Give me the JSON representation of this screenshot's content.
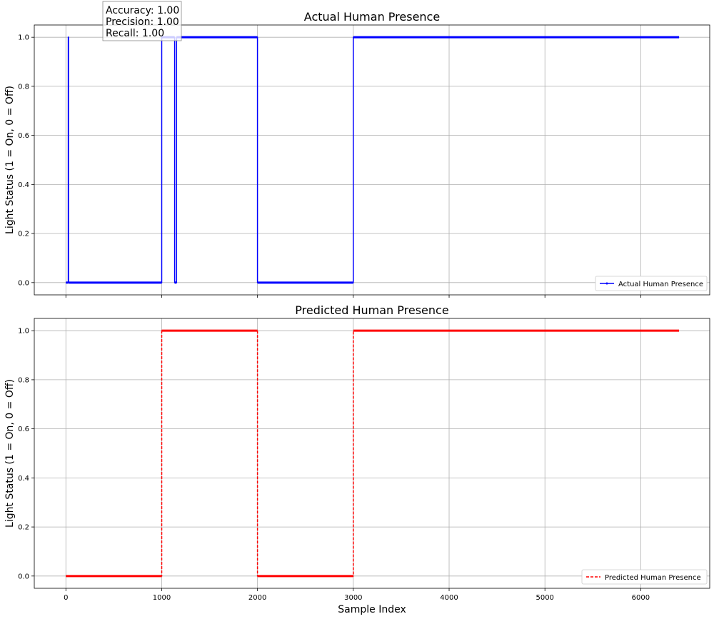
{
  "chart_data": [
    {
      "type": "line",
      "title": "Actual Human Presence",
      "xlabel": "",
      "ylabel": "Light Status (1 = On, 0 = Off)",
      "xlim": [
        -330,
        6720
      ],
      "ylim": [
        -0.05,
        1.05
      ],
      "xticks": [
        0,
        1000,
        2000,
        3000,
        4000,
        5000,
        6000
      ],
      "xtick_labels_shown": false,
      "yticks": [
        0.0,
        0.2,
        0.4,
        0.6,
        0.8,
        1.0
      ],
      "ytick_labels": [
        "0.0",
        "0.2",
        "0.4",
        "0.6",
        "0.8",
        "1.0"
      ],
      "grid": true,
      "legend": "lower right",
      "series": [
        {
          "name": "Actual Human Presence",
          "color": "#0000ff",
          "style": "solid",
          "marker": "point",
          "x": [
            0,
            25,
            25,
            28,
            28,
            1000,
            1000,
            1135,
            1135,
            1155,
            1155,
            2000,
            2000,
            3000,
            3000,
            6400
          ],
          "y": [
            0,
            0,
            1,
            1,
            0,
            0,
            1,
            1,
            0,
            0,
            1,
            1,
            0,
            0,
            1,
            1
          ]
        }
      ],
      "annotations": [
        "Accuracy: 1.00",
        "Precision: 1.00",
        "Recall: 1.00"
      ]
    },
    {
      "type": "line",
      "title": "Predicted Human Presence",
      "xlabel": "Sample Index",
      "ylabel": "Light Status (1 = On, 0 = Off)",
      "xlim": [
        -330,
        6720
      ],
      "ylim": [
        -0.05,
        1.05
      ],
      "xticks": [
        0,
        1000,
        2000,
        3000,
        4000,
        5000,
        6000
      ],
      "xtick_labels": [
        "0",
        "1000",
        "2000",
        "3000",
        "4000",
        "5000",
        "6000"
      ],
      "yticks": [
        0.0,
        0.2,
        0.4,
        0.6,
        0.8,
        1.0
      ],
      "ytick_labels": [
        "0.0",
        "0.2",
        "0.4",
        "0.6",
        "0.8",
        "1.0"
      ],
      "grid": true,
      "legend": "lower right",
      "series": [
        {
          "name": "Predicted Human Presence",
          "color": "#ff0000",
          "style": "dashed",
          "x": [
            0,
            1000,
            1000,
            2000,
            2000,
            3000,
            3000,
            6400
          ],
          "y": [
            0,
            0,
            1,
            1,
            0,
            0,
            1,
            1
          ]
        }
      ]
    }
  ]
}
